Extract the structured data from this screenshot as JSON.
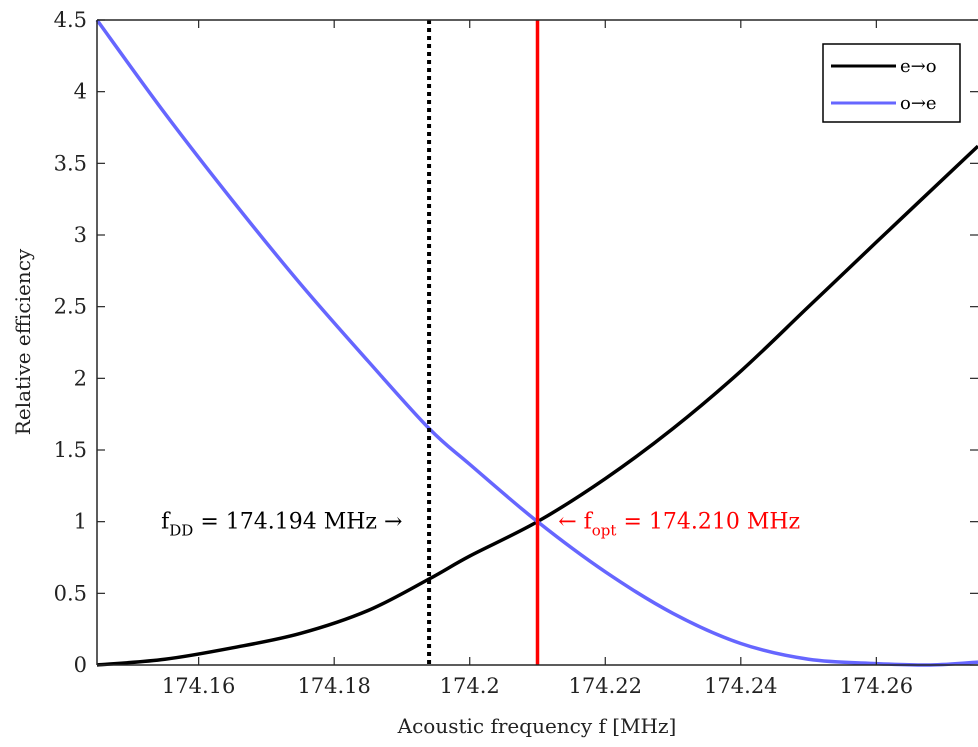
{
  "chart_data": {
    "type": "line",
    "xlabel": "Acoustic frequency f [MHz]",
    "ylabel": "Relative efficiency",
    "xlim": [
      174.145,
      174.275
    ],
    "ylim": [
      0,
      4.5
    ],
    "xticks": [
      174.16,
      174.18,
      174.2,
      174.22,
      174.24,
      174.26
    ],
    "xtick_labels": [
      "174.16",
      "174.18",
      "174.2",
      "174.22",
      "174.24",
      "174.26"
    ],
    "yticks": [
      0,
      0.5,
      1,
      1.5,
      2,
      2.5,
      3,
      3.5,
      4,
      4.5
    ],
    "ytick_labels": [
      "0",
      "0.5",
      "1",
      "1.5",
      "2",
      "2.5",
      "3",
      "3.5",
      "4",
      "4.5"
    ],
    "grid": false,
    "legend_position": "top-right",
    "series": [
      {
        "name": "e→o",
        "color": "#000000",
        "x": [
          174.145,
          174.155,
          174.165,
          174.175,
          174.185,
          174.194,
          174.2,
          174.21,
          174.22,
          174.23,
          174.24,
          174.25,
          174.26,
          174.275
        ],
        "y": [
          0.0,
          0.04,
          0.12,
          0.22,
          0.38,
          0.6,
          0.76,
          1.0,
          1.3,
          1.65,
          2.05,
          2.5,
          2.95,
          3.62
        ]
      },
      {
        "name": "o→e",
        "color": "#6666ff",
        "x": [
          174.145,
          174.155,
          174.165,
          174.175,
          174.185,
          174.194,
          174.2,
          174.21,
          174.22,
          174.23,
          174.24,
          174.25,
          174.26,
          174.268,
          174.275
        ],
        "y": [
          4.5,
          3.85,
          3.24,
          2.66,
          2.12,
          1.65,
          1.4,
          1.0,
          0.65,
          0.36,
          0.15,
          0.04,
          0.01,
          0.0,
          0.02
        ]
      }
    ],
    "vlines": [
      {
        "x": 174.194,
        "color": "#000000",
        "style": "dotted"
      },
      {
        "x": 174.21,
        "color": "#ff0000",
        "style": "solid"
      }
    ],
    "annotations": {
      "dd": {
        "main": "f",
        "sub": "DD",
        "rest": " = 174.194 MHz →",
        "x": 174.1945,
        "y": 1.0,
        "color": "#000000"
      },
      "opt": {
        "arrow": "← f",
        "sub": "opt",
        "rest": " = 174.210 MHz",
        "x": 174.2104,
        "y": 1.0,
        "color": "#ff0000"
      }
    }
  }
}
